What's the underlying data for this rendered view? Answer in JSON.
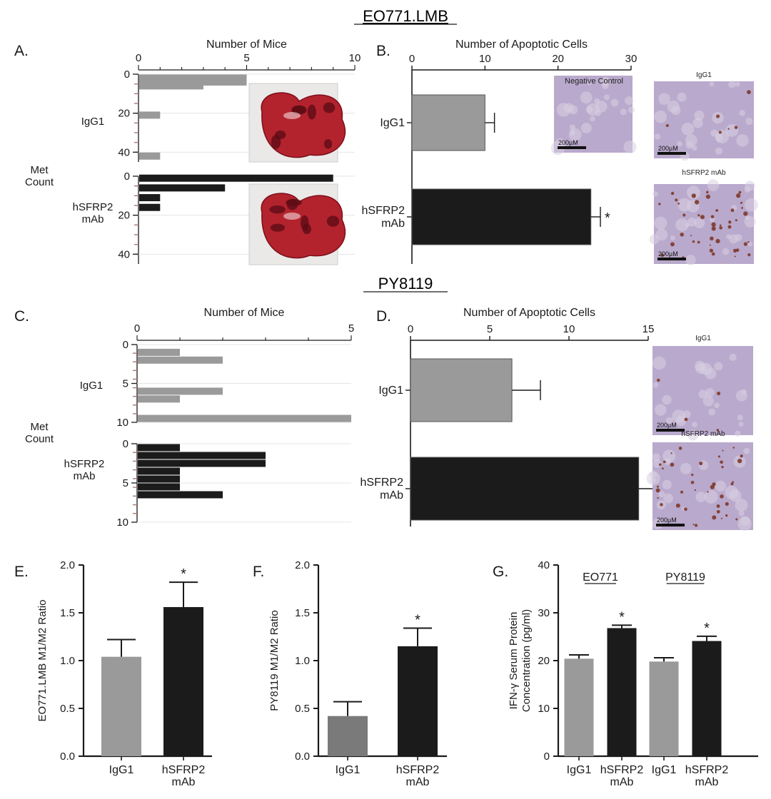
{
  "colors": {
    "gray": "#9a9a9a",
    "black": "#1b1b1b",
    "axis": "#1a1a1a",
    "tick_brown": "#a07a70",
    "ihc_bg": "#b9a9cc",
    "ihc_spot": "#7a3320",
    "lung": "#b3232e",
    "photo_bg": "#ebe8e8"
  },
  "sections": {
    "top": "EO771.LMB",
    "bottom": "PY8119"
  },
  "significance": "*",
  "photos": {
    "scale_bar": "200µM",
    "labels": {
      "negative_control": "Negative Control",
      "igg1": "IgG1",
      "hsfrp2": "hSFRP2 mAb"
    }
  },
  "chart_data": [
    {
      "panel": "A.",
      "type": "bar",
      "orientation": "horizontal",
      "title": "Number of Mice",
      "ylabel": [
        "Met",
        "Count"
      ],
      "xlim": [
        0,
        10
      ],
      "xticks": [
        0,
        5,
        10
      ],
      "groups": [
        {
          "name": "IgG1",
          "color_key": "gray",
          "ylim": [
            0,
            45
          ],
          "yticks": [
            0,
            20,
            40
          ],
          "bars": [
            {
              "y": 2,
              "value": 5
            },
            {
              "y": 4,
              "value": 5
            },
            {
              "y": 6,
              "value": 3
            },
            {
              "y": 21,
              "value": 1
            },
            {
              "y": 42,
              "value": 1
            }
          ]
        },
        {
          "name": "hSFRP2 mAb",
          "label_lines": [
            "hSFRP2",
            "mAb"
          ],
          "color_key": "black",
          "ylim": [
            0,
            45
          ],
          "yticks": [
            0,
            20,
            40
          ],
          "bars": [
            {
              "y": 1,
              "value": 9
            },
            {
              "y": 6,
              "value": 4
            },
            {
              "y": 11,
              "value": 1
            },
            {
              "y": 16,
              "value": 1
            }
          ]
        }
      ]
    },
    {
      "panel": "B.",
      "type": "bar",
      "orientation": "horizontal",
      "title": "Number of Apoptotic Cells",
      "xlim": [
        0,
        30
      ],
      "xticks": [
        0,
        10,
        20,
        30
      ],
      "categories": [
        "IgG1",
        "hSFRP2 mAb"
      ],
      "values": [
        10,
        24.5
      ],
      "errors": [
        1.3,
        1.3
      ],
      "significant": [
        false,
        true
      ]
    },
    {
      "panel": "C.",
      "type": "bar",
      "orientation": "horizontal",
      "title": "Number of Mice",
      "ylabel": [
        "Met",
        "Count"
      ],
      "xlim": [
        0,
        5
      ],
      "xticks": [
        0,
        5
      ],
      "groups": [
        {
          "name": "IgG1",
          "color_key": "gray",
          "ylim": [
            0,
            10
          ],
          "yticks": [
            0,
            5,
            10
          ],
          "bars": [
            {
              "y": 1,
              "value": 1
            },
            {
              "y": 2,
              "value": 2
            },
            {
              "y": 6,
              "value": 2
            },
            {
              "y": 7,
              "value": 1
            },
            {
              "y": 9.5,
              "value": 5
            }
          ]
        },
        {
          "name": "hSFRP2 mAb",
          "label_lines": [
            "hSFRP2",
            "mAb"
          ],
          "color_key": "black",
          "ylim": [
            0,
            10
          ],
          "yticks": [
            0,
            5,
            10
          ],
          "bars": [
            {
              "y": 0.5,
              "value": 1
            },
            {
              "y": 1.5,
              "value": 3
            },
            {
              "y": 2.5,
              "value": 3
            },
            {
              "y": 3.5,
              "value": 1
            },
            {
              "y": 4.5,
              "value": 1
            },
            {
              "y": 5.5,
              "value": 1
            },
            {
              "y": 6.5,
              "value": 2
            }
          ]
        }
      ]
    },
    {
      "panel": "D.",
      "type": "bar",
      "orientation": "horizontal",
      "title": "Number of Apoptotic Cells",
      "xlim": [
        0,
        15
      ],
      "xticks": [
        0,
        5,
        10,
        15
      ],
      "categories": [
        "IgG1",
        "hSFRP2 mAb"
      ],
      "values": [
        6.4,
        14.4
      ],
      "errors": [
        1.8,
        1.3
      ],
      "significant": [
        false,
        true
      ]
    },
    {
      "panel": "E.",
      "type": "bar",
      "ylabel": "EO771.LMB M1/M2 Ratio",
      "ylim": [
        0,
        2
      ],
      "yticks": [
        "0.0",
        "0.5",
        "1.0",
        "1.5",
        "2.0"
      ],
      "categories": [
        [
          "IgG1"
        ],
        [
          "hSFRP2",
          "mAb"
        ]
      ],
      "values": [
        1.04,
        1.56
      ],
      "errors": [
        0.18,
        0.26
      ],
      "significant": [
        false,
        true
      ]
    },
    {
      "panel": "F.",
      "type": "bar",
      "ylabel": "PY8119 M1/M2 Ratio",
      "ylim": [
        0,
        2
      ],
      "yticks": [
        "0.0",
        "0.5",
        "1.0",
        "1.5",
        "2.0"
      ],
      "categories": [
        [
          "IgG1"
        ],
        [
          "hSFRP2",
          "mAb"
        ]
      ],
      "values": [
        0.42,
        1.15
      ],
      "errors": [
        0.15,
        0.19
      ],
      "significant": [
        false,
        true
      ]
    },
    {
      "panel": "G.",
      "type": "bar",
      "ylabel": [
        "IFN-γ Serum Protein",
        "Concentration (pg/ml)"
      ],
      "ylim": [
        0,
        40
      ],
      "yticks": [
        "0",
        "10",
        "20",
        "30",
        "40"
      ],
      "group_labels": [
        "EO771",
        "PY8119"
      ],
      "categories": [
        [
          "IgG1"
        ],
        [
          "hSFRP2",
          "mAb"
        ],
        [
          "IgG1"
        ],
        [
          "hSFRP2",
          "mAb"
        ]
      ],
      "values": [
        20.4,
        26.8,
        19.8,
        24.1
      ],
      "errors": [
        0.8,
        0.6,
        0.8,
        1.0
      ],
      "significant": [
        false,
        true,
        false,
        true
      ]
    }
  ]
}
